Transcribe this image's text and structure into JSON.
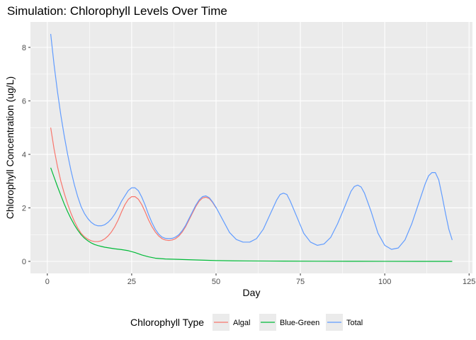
{
  "chart_data": {
    "type": "line",
    "title": "Simulation: Chlorophyll Levels Over Time",
    "xlabel": "Day",
    "ylabel": "Chlorophyll Concentration (ug/L)",
    "xlim": [
      -5,
      126
    ],
    "ylim": [
      -0.45,
      8.95
    ],
    "x_ticks": [
      0,
      25,
      50,
      75,
      100,
      125
    ],
    "y_ticks": [
      0,
      2,
      4,
      6,
      8
    ],
    "grid": true,
    "legend": {
      "title": "Chlorophyll Type",
      "position": "bottom"
    },
    "series": [
      {
        "name": "Algal",
        "color": "#F8766D",
        "x": [
          1,
          2,
          3,
          4,
          5,
          6,
          7,
          8,
          9,
          10,
          11,
          12,
          13,
          14,
          15,
          16,
          17,
          18,
          19,
          20,
          21,
          22,
          23,
          24,
          25,
          26,
          27,
          28,
          29,
          30,
          31,
          32,
          33,
          34,
          35,
          36,
          37,
          38,
          39,
          40,
          41,
          42,
          43,
          44,
          45,
          46,
          47,
          48,
          49,
          50
        ],
        "y": [
          5.0,
          4.2,
          3.55,
          3.0,
          2.55,
          2.15,
          1.8,
          1.5,
          1.25,
          1.05,
          0.92,
          0.83,
          0.77,
          0.74,
          0.74,
          0.77,
          0.84,
          0.95,
          1.1,
          1.3,
          1.55,
          1.85,
          2.12,
          2.32,
          2.42,
          2.42,
          2.32,
          2.12,
          1.85,
          1.55,
          1.3,
          1.1,
          0.95,
          0.85,
          0.8,
          0.78,
          0.8,
          0.85,
          0.95,
          1.1,
          1.3,
          1.55,
          1.8,
          2.05,
          2.25,
          2.37,
          2.4,
          2.35,
          2.2,
          2.0
        ]
      },
      {
        "name": "Blue-Green",
        "color": "#00BA38",
        "x": [
          1,
          2,
          3,
          4,
          5,
          6,
          7,
          8,
          9,
          10,
          11,
          12,
          13,
          14,
          15,
          16,
          17,
          18,
          19,
          20,
          22,
          24,
          26,
          28,
          30,
          32,
          35,
          40,
          45,
          50,
          55,
          60,
          70,
          80,
          90,
          100,
          110,
          120
        ],
        "y": [
          3.5,
          3.15,
          2.8,
          2.47,
          2.15,
          1.86,
          1.6,
          1.37,
          1.17,
          1.0,
          0.87,
          0.77,
          0.69,
          0.63,
          0.59,
          0.56,
          0.53,
          0.51,
          0.49,
          0.47,
          0.44,
          0.4,
          0.33,
          0.24,
          0.17,
          0.12,
          0.09,
          0.07,
          0.05,
          0.03,
          0.02,
          0.015,
          0.01,
          0.005,
          0.003,
          0.002,
          0.001,
          0.0
        ]
      },
      {
        "name": "Total",
        "color": "#619CFF",
        "x": [
          1,
          2,
          3,
          4,
          5,
          6,
          7,
          8,
          9,
          10,
          11,
          12,
          13,
          14,
          15,
          16,
          17,
          18,
          19,
          20,
          21,
          22,
          23,
          24,
          25,
          26,
          27,
          28,
          29,
          30,
          31,
          32,
          33,
          34,
          35,
          36,
          37,
          38,
          39,
          40,
          41,
          42,
          43,
          44,
          45,
          46,
          47,
          48,
          49,
          50,
          52,
          54,
          56,
          58,
          60,
          62,
          64,
          66,
          68,
          69,
          70,
          71,
          72,
          74,
          76,
          78,
          80,
          82,
          84,
          86,
          88,
          90,
          91,
          92,
          93,
          94,
          96,
          98,
          100,
          102,
          104,
          106,
          108,
          110,
          112,
          113,
          114,
          115,
          116,
          117,
          118,
          119,
          120
        ],
        "y": [
          8.5,
          7.35,
          6.35,
          5.47,
          4.7,
          4.01,
          3.4,
          2.87,
          2.42,
          2.05,
          1.79,
          1.6,
          1.46,
          1.37,
          1.33,
          1.33,
          1.37,
          1.46,
          1.59,
          1.77,
          1.99,
          2.25,
          2.45,
          2.65,
          2.75,
          2.75,
          2.64,
          2.4,
          2.1,
          1.75,
          1.45,
          1.2,
          1.02,
          0.91,
          0.86,
          0.85,
          0.86,
          0.91,
          1.0,
          1.15,
          1.35,
          1.6,
          1.85,
          2.1,
          2.3,
          2.42,
          2.45,
          2.38,
          2.22,
          2.02,
          1.55,
          1.08,
          0.82,
          0.72,
          0.72,
          0.85,
          1.2,
          1.75,
          2.3,
          2.5,
          2.55,
          2.5,
          2.25,
          1.65,
          1.05,
          0.72,
          0.6,
          0.65,
          0.9,
          1.4,
          2.0,
          2.62,
          2.8,
          2.85,
          2.78,
          2.55,
          1.85,
          1.05,
          0.6,
          0.45,
          0.5,
          0.8,
          1.4,
          2.15,
          2.9,
          3.2,
          3.32,
          3.32,
          3.05,
          2.45,
          1.8,
          1.2,
          0.8
        ]
      }
    ]
  }
}
